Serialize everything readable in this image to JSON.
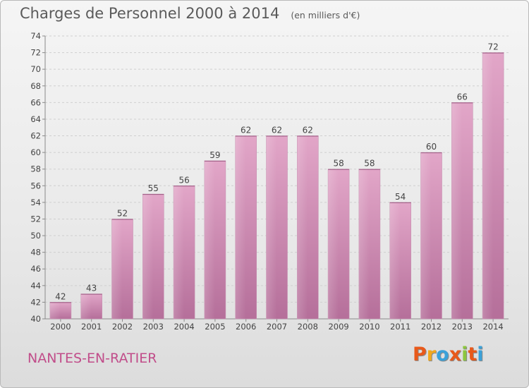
{
  "header": {
    "title": "Charges de Personnel 2000 à 2014",
    "subtitle": "(en milliers d'€)"
  },
  "footer": {
    "commune": "NANTES-EN-RATIER",
    "brand": "Proxiti",
    "brand_colors": [
      "#e8591a",
      "#f2a81d",
      "#3aa1d9",
      "#e8591a",
      "#8cc63e",
      "#e8591a",
      "#3aa1d9"
    ]
  },
  "chart_data": {
    "type": "bar",
    "title": "Charges de Personnel 2000 à 2014",
    "subtitle": "(en milliers d'€)",
    "xlabel": "",
    "ylabel": "",
    "categories": [
      "2000",
      "2001",
      "2002",
      "2003",
      "2004",
      "2005",
      "2006",
      "2007",
      "2008",
      "2009",
      "2010",
      "2011",
      "2012",
      "2013",
      "2014"
    ],
    "values": [
      42,
      43,
      52,
      55,
      56,
      59,
      62,
      62,
      62,
      58,
      58,
      54,
      60,
      66,
      72
    ],
    "ylim": [
      40,
      74
    ],
    "yticks": [
      40,
      42,
      44,
      46,
      48,
      50,
      52,
      54,
      56,
      58,
      60,
      62,
      64,
      66,
      68,
      70,
      72,
      74
    ],
    "grid": "horizontal dashed",
    "bar_color_top": "#e2a6c8",
    "bar_color_bottom": "#b56f9a"
  }
}
